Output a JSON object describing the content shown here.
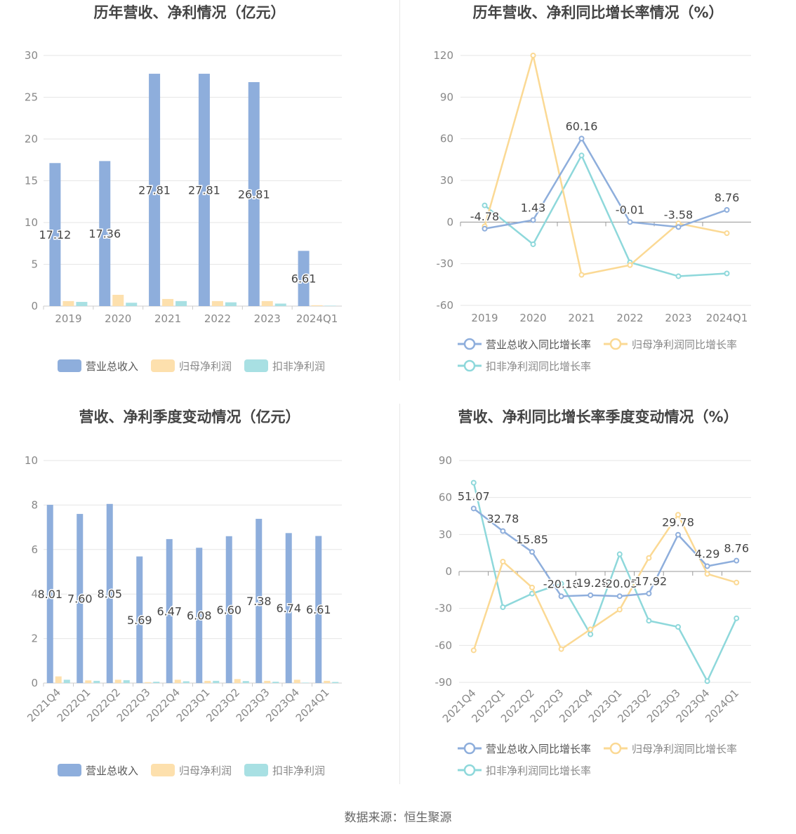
{
  "footer": {
    "source": "数据来源：恒生聚源"
  },
  "colors": {
    "revenue": "#8eaedc",
    "parent_net": "#fde0ad",
    "deducted_net": "#a8e0e3",
    "line_revenue": "#8eaedc",
    "line_parent": "#fbd994",
    "line_deducted": "#8ed8db"
  },
  "chart_data": [
    {
      "type": "bar",
      "title": "历年营收、净利情况（亿元）",
      "categories": [
        "2019",
        "2020",
        "2021",
        "2022",
        "2023",
        "2024Q1"
      ],
      "ylim": [
        0,
        30
      ],
      "yticks": [
        0,
        5,
        10,
        15,
        20,
        25,
        30
      ],
      "series": [
        {
          "name": "营业总收入",
          "values": [
            17.12,
            17.36,
            27.81,
            27.81,
            26.81,
            6.61
          ],
          "labels": [
            "17.12",
            "17.36",
            "27.81",
            "27.81",
            "26.81",
            "6.61"
          ]
        },
        {
          "name": "归母净利润",
          "values": [
            0.6,
            1.35,
            0.85,
            0.6,
            0.6,
            0.1
          ]
        },
        {
          "name": "扣非净利润",
          "values": [
            0.5,
            0.4,
            0.6,
            0.45,
            0.3,
            0.05
          ]
        }
      ],
      "legend": "bottom",
      "grid": true
    },
    {
      "type": "line",
      "title": "历年营收、净利同比增长率情况（%）",
      "categories": [
        "2019",
        "2020",
        "2021",
        "2022",
        "2023",
        "2024Q1"
      ],
      "ylim": [
        -60,
        120
      ],
      "yticks": [
        -60,
        -30,
        0,
        30,
        60,
        90,
        120
      ],
      "series": [
        {
          "name": "营业总收入同比增长率",
          "values": [
            -4.78,
            1.43,
            60.16,
            -0.01,
            -3.58,
            8.76
          ],
          "labels": [
            "-4.78",
            "1.43",
            "60.16",
            "-0.01",
            "-3.58",
            "8.76"
          ]
        },
        {
          "name": "归母净利润同比增长率",
          "values": [
            -3,
            120,
            -38,
            -31,
            -1,
            -8
          ]
        },
        {
          "name": "扣非净利润同比增长率",
          "values": [
            12,
            -16,
            48,
            -29,
            -39,
            -37
          ]
        }
      ],
      "legend": "bottom",
      "grid": true
    },
    {
      "type": "bar",
      "title": "营收、净利季度变动情况（亿元）",
      "categories": [
        "2021Q4",
        "2022Q1",
        "2022Q2",
        "2022Q3",
        "2022Q4",
        "2023Q1",
        "2023Q2",
        "2023Q3",
        "2023Q4",
        "2024Q1"
      ],
      "ylim": [
        0,
        10
      ],
      "yticks": [
        0,
        2,
        4,
        6,
        8,
        10
      ],
      "series": [
        {
          "name": "营业总收入",
          "values": [
            8.01,
            7.6,
            8.05,
            5.69,
            6.47,
            6.08,
            6.6,
            7.38,
            6.74,
            6.61
          ],
          "labels": [
            "8.01",
            "7.60",
            "8.05",
            "5.69",
            "6.47",
            "6.08",
            "6.60",
            "7.38",
            "6.74",
            "6.61"
          ]
        },
        {
          "name": "归母净利润",
          "values": [
            0.3,
            0.12,
            0.15,
            0.04,
            0.15,
            0.1,
            0.18,
            0.1,
            0.15,
            0.1
          ]
        },
        {
          "name": "扣非净利润",
          "values": [
            0.15,
            0.1,
            0.13,
            0.06,
            0.08,
            0.1,
            0.09,
            0.06,
            0.02,
            0.05
          ]
        }
      ],
      "legend": "bottom",
      "grid": true
    },
    {
      "type": "line",
      "title": "营收、净利同比增长率季度变动情况（%）",
      "categories": [
        "2021Q4",
        "2022Q1",
        "2022Q2",
        "2022Q3",
        "2022Q4",
        "2023Q1",
        "2023Q2",
        "2023Q3",
        "2023Q4",
        "2024Q1"
      ],
      "ylim": [
        -90,
        90
      ],
      "yticks": [
        -90,
        -60,
        -30,
        0,
        30,
        60,
        90
      ],
      "series": [
        {
          "name": "营业总收入同比增长率",
          "values": [
            51.07,
            32.78,
            15.85,
            -20.16,
            -19.28,
            -20.05,
            -17.92,
            29.78,
            4.29,
            8.76
          ],
          "labels": [
            "51.07",
            "32.78",
            "15.85",
            "-20.16",
            "-19.28",
            "-20.05",
            "-17.92",
            "29.78",
            "4.29",
            "8.76"
          ]
        },
        {
          "name": "归母净利润同比增长率",
          "values": [
            -64,
            8,
            -13,
            -63,
            -47,
            -31,
            11,
            46,
            -2,
            -9
          ]
        },
        {
          "name": "扣非净利润同比增长率",
          "values": [
            72,
            -29,
            -18,
            -10,
            -51,
            14,
            -40,
            -45,
            -89,
            -38
          ]
        }
      ],
      "legend": "bottom",
      "grid": true
    }
  ]
}
